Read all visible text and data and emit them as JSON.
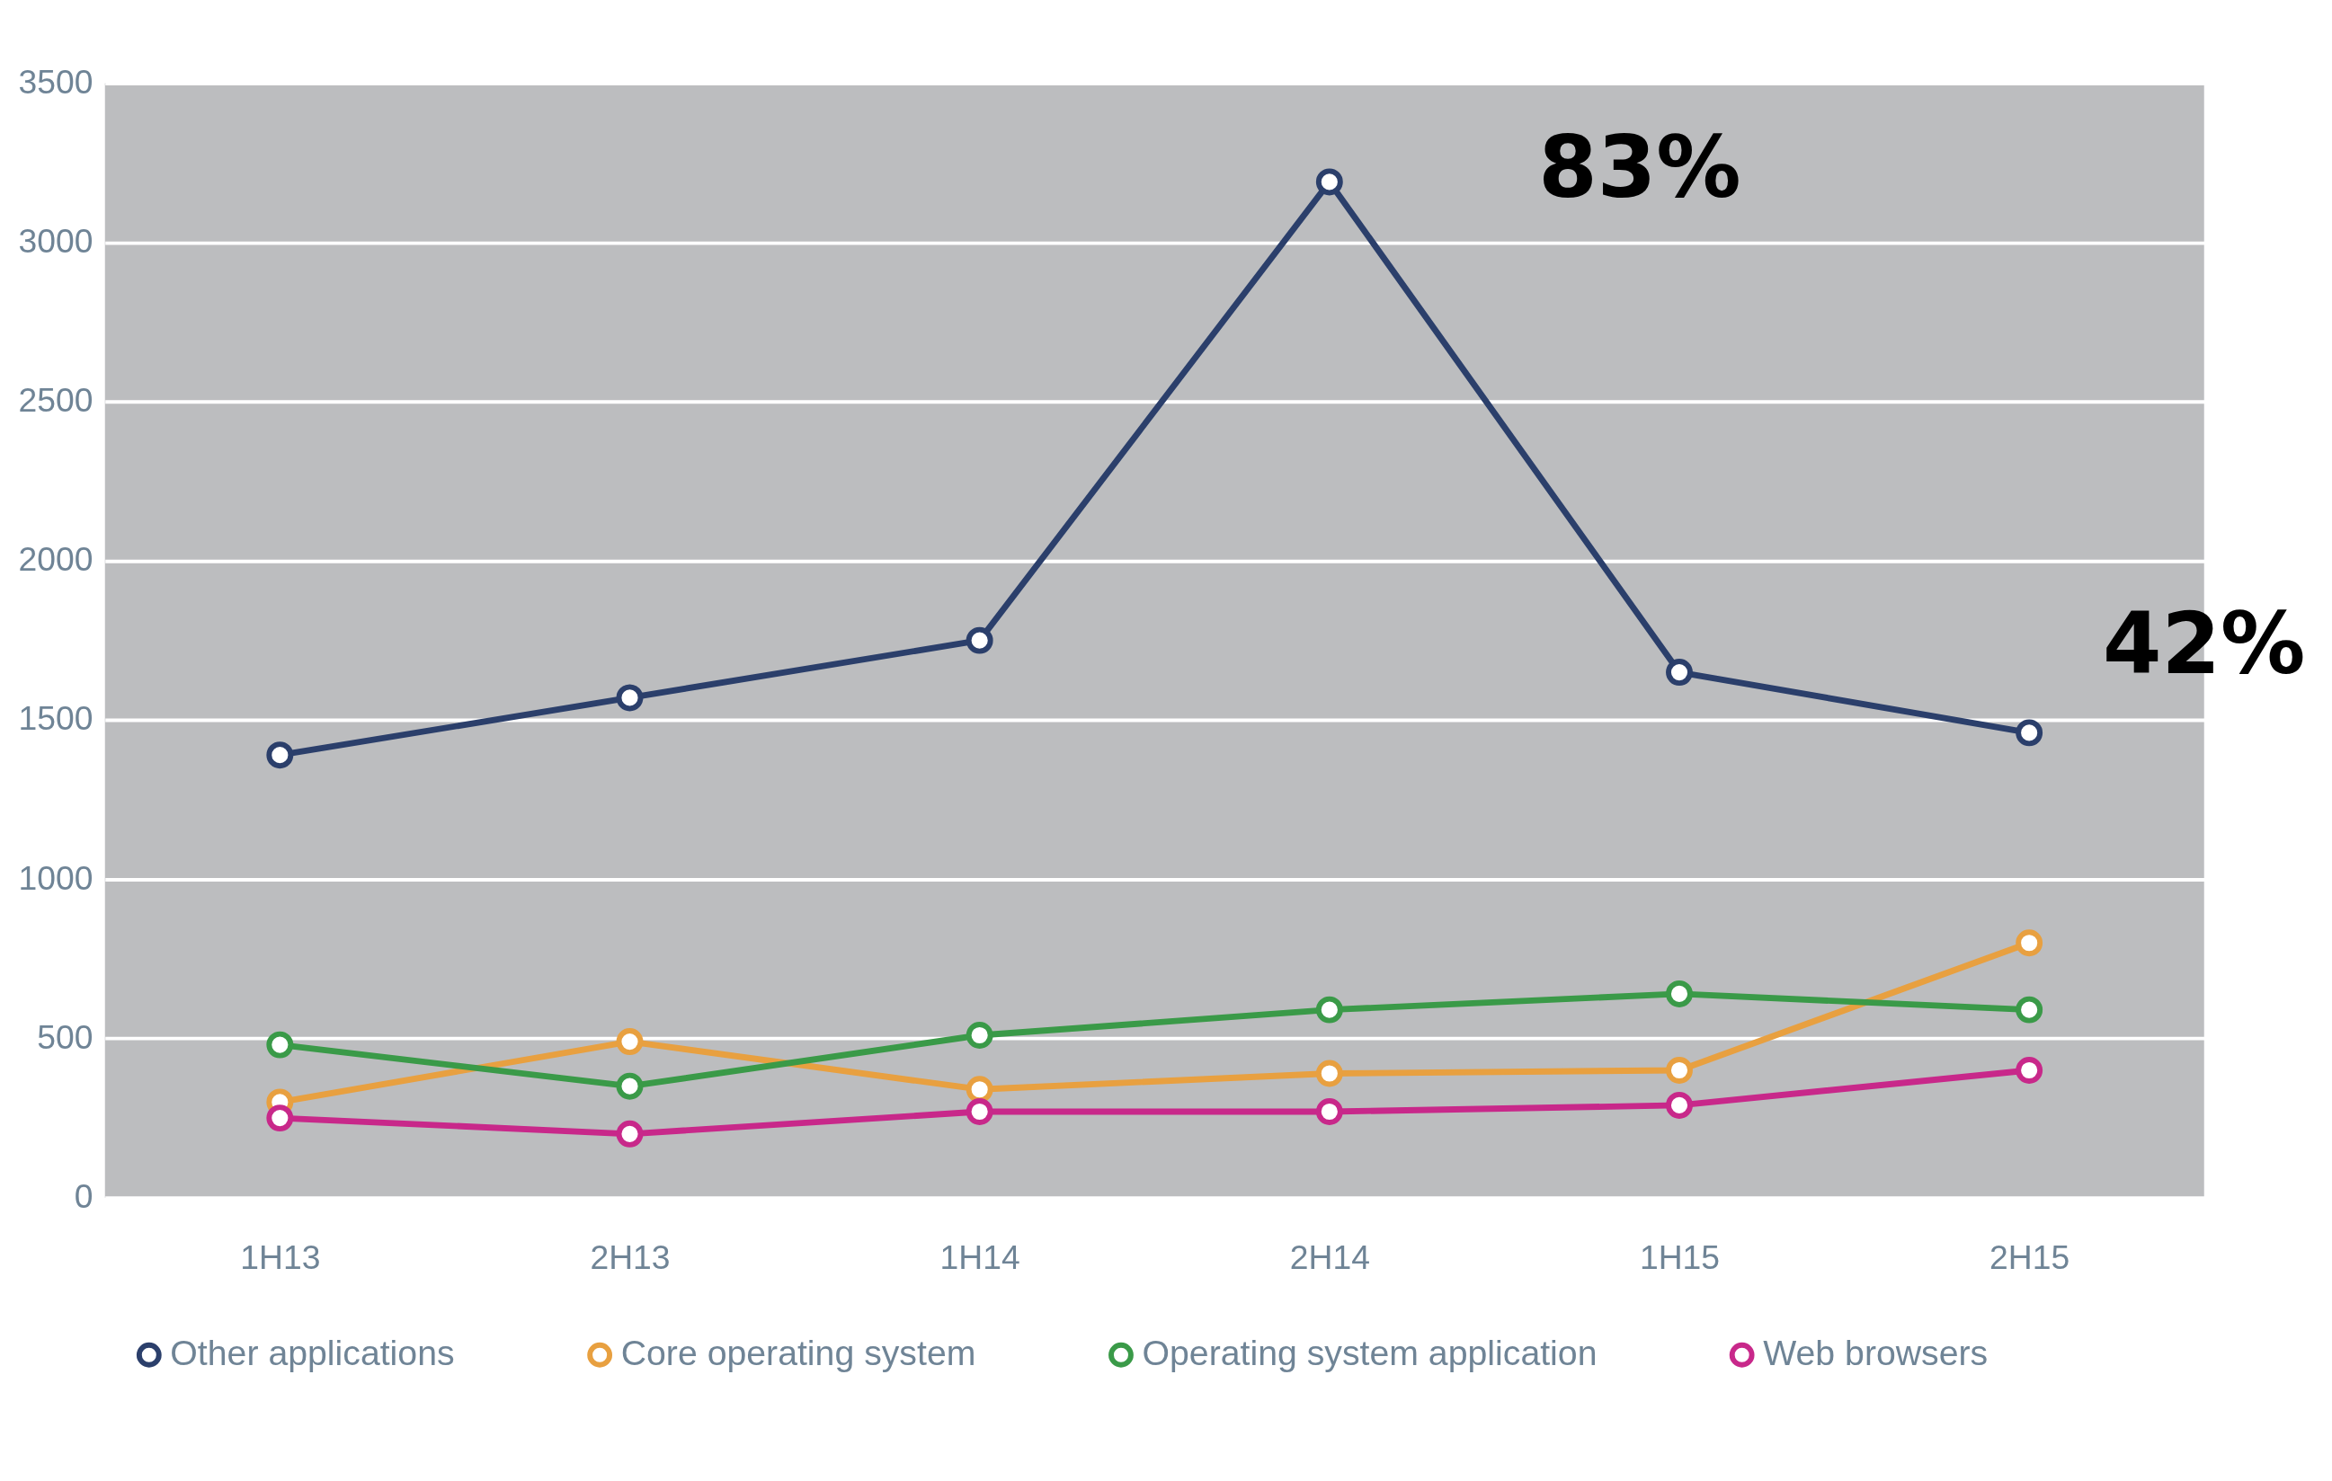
{
  "chart_data": {
    "type": "line",
    "categories": [
      "1H13",
      "2H13",
      "1H14",
      "2H14",
      "1H15",
      "2H15"
    ],
    "series": [
      {
        "name": "Other applications",
        "color": "#2b3f6b",
        "values": [
          1390,
          1570,
          1750,
          3190,
          1650,
          1460
        ]
      },
      {
        "name": "Core operating system",
        "color": "#e8a040",
        "values": [
          300,
          490,
          340,
          390,
          400,
          800
        ]
      },
      {
        "name": "Operating system application",
        "color": "#3a9a48",
        "values": [
          480,
          350,
          510,
          590,
          640,
          590
        ]
      },
      {
        "name": "Web browsers",
        "color": "#c8288a",
        "values": [
          250,
          200,
          270,
          270,
          290,
          400
        ]
      }
    ],
    "ylim": [
      0,
      3500
    ],
    "yticks": [
      0,
      500,
      1000,
      1500,
      2000,
      2500,
      3000,
      3500
    ],
    "annotations": [
      "83%",
      "42%"
    ],
    "grid": "y",
    "legend": "bottom",
    "marker": "circle",
    "line_style": "solid"
  }
}
